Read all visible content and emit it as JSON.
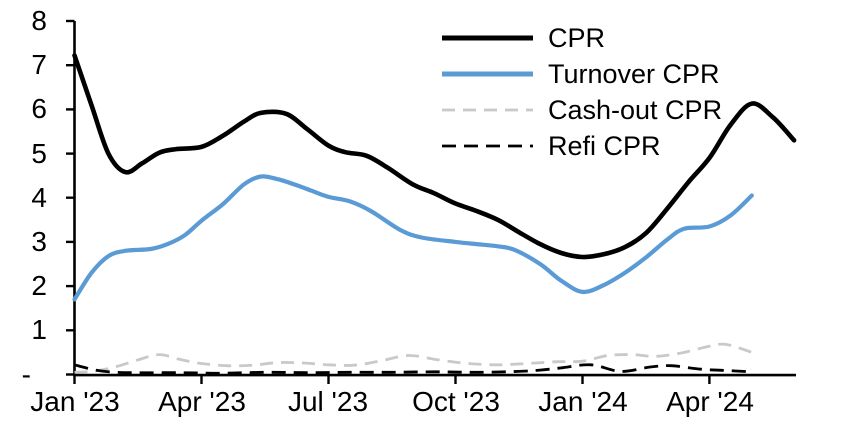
{
  "chart_data": {
    "type": "line",
    "title": "",
    "grid": false,
    "y_axis": {
      "tick_labels": [
        "-",
        "1",
        "2",
        "3",
        "4",
        "5",
        "6",
        "7",
        "8"
      ],
      "tick_values": [
        0,
        1,
        2,
        3,
        4,
        5,
        6,
        7,
        8
      ],
      "range": [
        0,
        8
      ]
    },
    "x_axis": {
      "unit": "month",
      "ticks": [
        {
          "label": "Jan '23",
          "month": 0
        },
        {
          "label": "Apr '23",
          "month": 3
        },
        {
          "label": "Jul '23",
          "month": 6
        },
        {
          "label": "Oct '23",
          "month": 9
        },
        {
          "label": "Jan '24",
          "month": 12
        },
        {
          "label": "Apr '24",
          "month": 15
        }
      ],
      "range_months": [
        0,
        17.05
      ]
    },
    "legend": {
      "position": "top-right"
    },
    "series": [
      {
        "name": "CPR",
        "color": "#000000",
        "dash": "",
        "width": 4.6,
        "points": [
          [
            0,
            7.22
          ],
          [
            0.4,
            6.1
          ],
          [
            0.8,
            5.0
          ],
          [
            1.2,
            4.58
          ],
          [
            1.6,
            4.78
          ],
          [
            2.0,
            5.02
          ],
          [
            2.4,
            5.1
          ],
          [
            3.0,
            5.15
          ],
          [
            3.5,
            5.4
          ],
          [
            4.0,
            5.72
          ],
          [
            4.4,
            5.92
          ],
          [
            5.0,
            5.9
          ],
          [
            5.5,
            5.55
          ],
          [
            6.0,
            5.18
          ],
          [
            6.4,
            5.03
          ],
          [
            6.9,
            4.95
          ],
          [
            7.4,
            4.68
          ],
          [
            8.0,
            4.3
          ],
          [
            8.5,
            4.1
          ],
          [
            9.0,
            3.87
          ],
          [
            9.5,
            3.7
          ],
          [
            10.0,
            3.5
          ],
          [
            10.5,
            3.22
          ],
          [
            11.0,
            2.95
          ],
          [
            11.5,
            2.75
          ],
          [
            12.0,
            2.66
          ],
          [
            12.5,
            2.72
          ],
          [
            13.0,
            2.88
          ],
          [
            13.5,
            3.2
          ],
          [
            14.0,
            3.75
          ],
          [
            14.5,
            4.35
          ],
          [
            15.0,
            4.9
          ],
          [
            15.5,
            5.65
          ],
          [
            16.0,
            6.13
          ],
          [
            16.5,
            5.82
          ],
          [
            17.0,
            5.3
          ]
        ]
      },
      {
        "name": "Turnover CPR",
        "color": "#5B9BD5",
        "dash": "",
        "width": 4.2,
        "points": [
          [
            0,
            1.7
          ],
          [
            0.4,
            2.3
          ],
          [
            0.8,
            2.68
          ],
          [
            1.2,
            2.8
          ],
          [
            1.8,
            2.84
          ],
          [
            2.2,
            2.95
          ],
          [
            2.6,
            3.15
          ],
          [
            3.0,
            3.48
          ],
          [
            3.5,
            3.85
          ],
          [
            4.0,
            4.3
          ],
          [
            4.4,
            4.48
          ],
          [
            4.8,
            4.42
          ],
          [
            5.2,
            4.3
          ],
          [
            5.6,
            4.16
          ],
          [
            6.0,
            4.02
          ],
          [
            6.5,
            3.92
          ],
          [
            7.0,
            3.7
          ],
          [
            7.7,
            3.27
          ],
          [
            8.2,
            3.1
          ],
          [
            9.0,
            3.0
          ],
          [
            9.5,
            2.95
          ],
          [
            10.0,
            2.9
          ],
          [
            10.4,
            2.82
          ],
          [
            11.0,
            2.5
          ],
          [
            11.5,
            2.12
          ],
          [
            12.0,
            1.87
          ],
          [
            12.5,
            2.02
          ],
          [
            13.0,
            2.3
          ],
          [
            13.5,
            2.65
          ],
          [
            14.0,
            3.05
          ],
          [
            14.4,
            3.3
          ],
          [
            15.0,
            3.35
          ],
          [
            15.5,
            3.6
          ],
          [
            16.0,
            4.05
          ]
        ]
      },
      {
        "name": "Cash-out CPR",
        "color": "#C9C9C9",
        "dash": "13 8",
        "width": 2.8,
        "points": [
          [
            0,
            0.05
          ],
          [
            0.5,
            0.08
          ],
          [
            1.0,
            0.18
          ],
          [
            1.5,
            0.33
          ],
          [
            2.0,
            0.45
          ],
          [
            2.5,
            0.34
          ],
          [
            3.0,
            0.25
          ],
          [
            3.6,
            0.2
          ],
          [
            4.2,
            0.21
          ],
          [
            4.8,
            0.27
          ],
          [
            5.4,
            0.26
          ],
          [
            6.0,
            0.22
          ],
          [
            6.6,
            0.21
          ],
          [
            7.2,
            0.3
          ],
          [
            7.9,
            0.43
          ],
          [
            8.6,
            0.33
          ],
          [
            9.3,
            0.25
          ],
          [
            10.0,
            0.22
          ],
          [
            10.7,
            0.25
          ],
          [
            11.4,
            0.29
          ],
          [
            12.0,
            0.3
          ],
          [
            12.6,
            0.43
          ],
          [
            13.2,
            0.45
          ],
          [
            13.7,
            0.41
          ],
          [
            14.3,
            0.48
          ],
          [
            15.0,
            0.64
          ],
          [
            15.4,
            0.68
          ],
          [
            16.0,
            0.5
          ]
        ]
      },
      {
        "name": "Refi CPR",
        "color": "#000000",
        "dash": "14 8",
        "width": 2.8,
        "points": [
          [
            0,
            0.22
          ],
          [
            0.5,
            0.1
          ],
          [
            1.0,
            0.05
          ],
          [
            1.5,
            0.04
          ],
          [
            2.5,
            0.04
          ],
          [
            3.5,
            0.03
          ],
          [
            4.5,
            0.05
          ],
          [
            5.5,
            0.04
          ],
          [
            6.5,
            0.05
          ],
          [
            7.5,
            0.05
          ],
          [
            8.5,
            0.06
          ],
          [
            9.5,
            0.05
          ],
          [
            10.5,
            0.07
          ],
          [
            11.0,
            0.1
          ],
          [
            11.5,
            0.15
          ],
          [
            12.2,
            0.22
          ],
          [
            12.9,
            0.07
          ],
          [
            13.6,
            0.17
          ],
          [
            14.1,
            0.2
          ],
          [
            14.8,
            0.12
          ],
          [
            15.4,
            0.09
          ],
          [
            16.0,
            0.06
          ]
        ]
      }
    ]
  }
}
